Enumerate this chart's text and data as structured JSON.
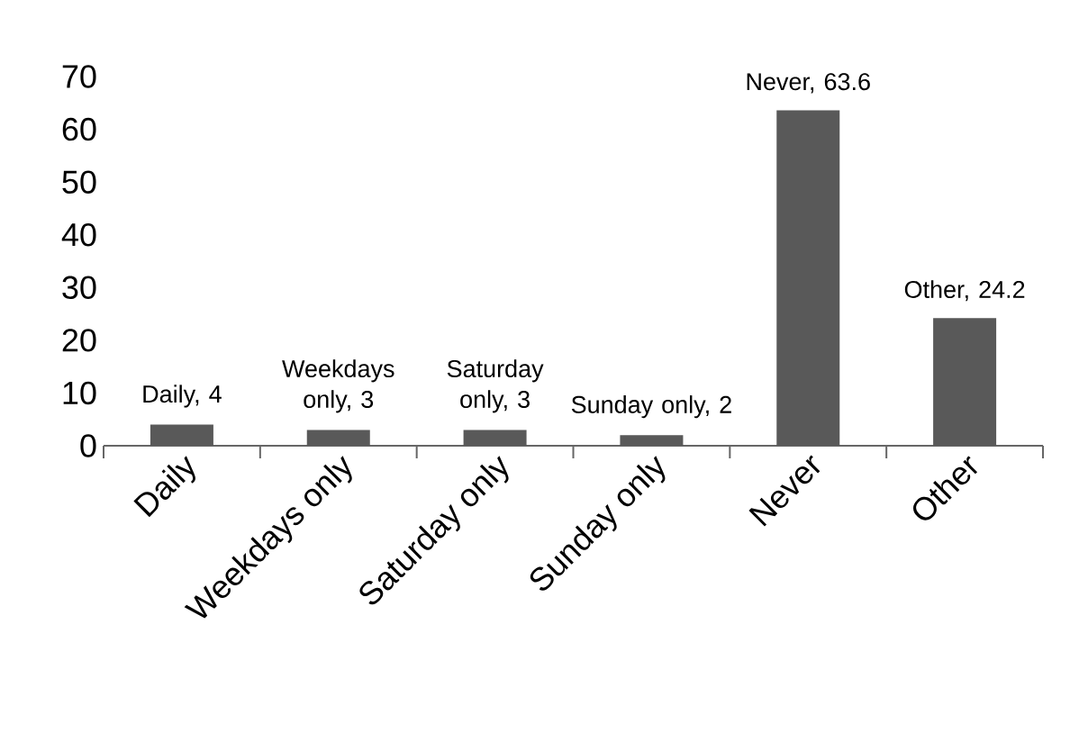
{
  "chart_data": {
    "type": "bar",
    "categories": [
      "Daily",
      "Weekdays only",
      "Saturday only",
      "Sunday only",
      "Never",
      "Other"
    ],
    "values": [
      4,
      3,
      3,
      2,
      63.6,
      24.2
    ],
    "value_labels": [
      "Daily, 4",
      "Weekdays only, 3",
      "Saturday only, 3",
      "Sunday only, 2",
      "Never, 63.6",
      "Other, 24.2"
    ],
    "color": "#595959",
    "ylim": [
      0,
      70
    ],
    "yticks": [
      0,
      10,
      20,
      30,
      40,
      50,
      60,
      70
    ]
  }
}
